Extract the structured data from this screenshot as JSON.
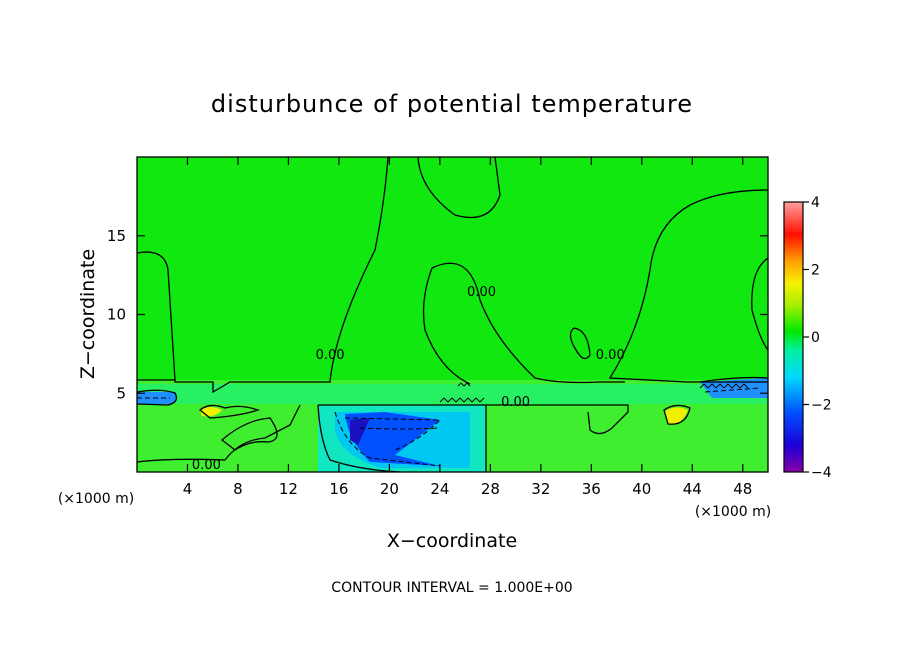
{
  "chart_data": {
    "type": "heatmap",
    "title": "disturbunce of potential temperature",
    "xlabel": "X−coordinate",
    "ylabel": "Z−coordinate",
    "x_unit_label": "(×1000 m)",
    "x_unit_label_right": "(×1000 m)",
    "xlim": [
      0,
      50
    ],
    "ylim": [
      0,
      20
    ],
    "x_ticks": [
      4,
      8,
      12,
      16,
      20,
      24,
      28,
      32,
      36,
      40,
      44,
      48
    ],
    "y_ticks": [
      5,
      10,
      15
    ],
    "colorbar": {
      "range": [
        -4,
        4
      ],
      "ticks": [
        4,
        2,
        0,
        -2,
        -4
      ],
      "tick_labels": [
        "4",
        "2",
        "0",
        "−2",
        "−4"
      ]
    },
    "contour_interval_text": "CONTOUR INTERVAL = 1.000E+00",
    "contour_labels": [
      {
        "text": "0.00",
        "x": 5.5,
        "y": 0.5
      },
      {
        "text": "0.00",
        "x": 30,
        "y": 4.5
      },
      {
        "text": "0.00",
        "x": 15.3,
        "y": 7.5
      },
      {
        "text": "0.00",
        "x": 27.3,
        "y": 11.5
      },
      {
        "text": "0.00",
        "x": 37.5,
        "y": 7.5
      }
    ],
    "regions": [
      {
        "name": "background",
        "value": 0.0
      },
      {
        "name": "cold-pool-core",
        "x": [
          15,
          27
        ],
        "y": [
          0,
          4
        ],
        "value": -2.5
      },
      {
        "name": "cold-layer",
        "x": [
          0,
          50
        ],
        "y": [
          4,
          5.5
        ],
        "value": -1.0
      },
      {
        "name": "warm-spot-left",
        "x": [
          5,
          6
        ],
        "y": [
          3,
          4
        ],
        "value": 1.5
      },
      {
        "name": "warm-spot-right",
        "x": [
          42,
          44
        ],
        "y": [
          3,
          4
        ],
        "value": 1.5
      }
    ]
  }
}
